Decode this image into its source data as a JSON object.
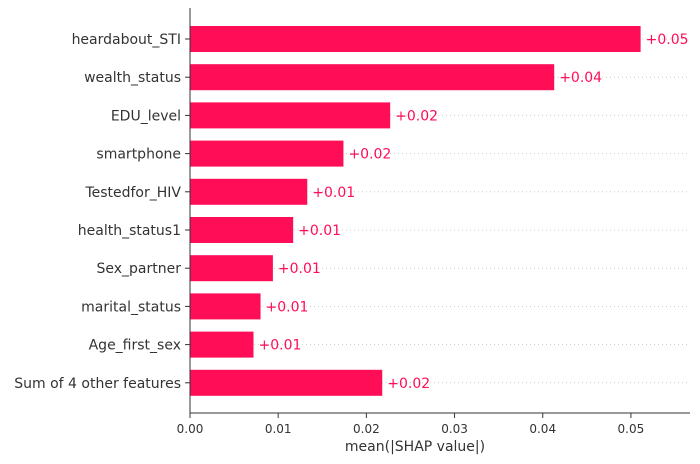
{
  "chart_data": {
    "type": "bar",
    "orientation": "horizontal",
    "categories": [
      "heardabout_STI",
      "wealth_status",
      "EDU_level",
      "smartphone",
      "Testedfor_HIV",
      "health_status1",
      "Sex_partner",
      "marital_status",
      "Age_first_sex",
      "Sum of 4 other features"
    ],
    "values": [
      0.0511,
      0.0413,
      0.0227,
      0.0174,
      0.0133,
      0.0117,
      0.0094,
      0.008,
      0.0072,
      0.0218
    ],
    "value_labels": [
      "+0.05",
      "+0.04",
      "+0.02",
      "+0.02",
      "+0.01",
      "+0.01",
      "+0.01",
      "+0.01",
      "+0.01",
      "+0.02"
    ],
    "xlabel": "mean(|SHAP value|)",
    "xticks": [
      "0.00",
      "0.01",
      "0.02",
      "0.03",
      "0.04",
      "0.05"
    ],
    "xtick_values": [
      0,
      0.01,
      0.02,
      0.03,
      0.04,
      0.05
    ],
    "xlim": [
      0,
      0.0567
    ],
    "grid": "horizontal dotted per row",
    "colors": {
      "bar": "#ff0d57",
      "value_label": "#ff0d57",
      "text": "#333333",
      "axis": "#333333",
      "grid": "#cccccc"
    }
  }
}
